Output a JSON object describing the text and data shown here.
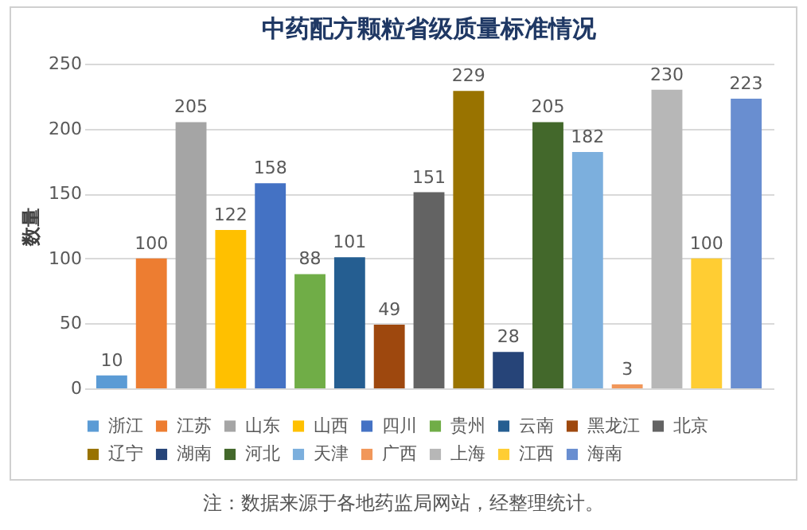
{
  "chart_data": {
    "type": "bar",
    "title": "中药配方颗粒省级质量标准情况",
    "ylabel": "数量",
    "categories": [
      null,
      null,
      null,
      null,
      null,
      null,
      null,
      null,
      null,
      null,
      null,
      null,
      null,
      null,
      null,
      null,
      null
    ],
    "series": [
      {
        "name": "浙江",
        "color": "#5b9bd5",
        "values": [
          10,
          null,
          null,
          null,
          null,
          null,
          null,
          null,
          null,
          null,
          null,
          null,
          null,
          null,
          null,
          null,
          null
        ]
      },
      {
        "name": "江苏",
        "color": "#ed7d31",
        "values": [
          null,
          100,
          null,
          null,
          null,
          null,
          null,
          null,
          null,
          null,
          null,
          null,
          null,
          null,
          null,
          null,
          null
        ]
      },
      {
        "name": "山东",
        "color": "#a5a5a5",
        "values": [
          null,
          null,
          205,
          null,
          null,
          null,
          null,
          null,
          null,
          null,
          null,
          null,
          null,
          null,
          null,
          null,
          null
        ]
      },
      {
        "name": "山西",
        "color": "#ffc000",
        "values": [
          null,
          null,
          null,
          122,
          null,
          null,
          null,
          null,
          null,
          null,
          null,
          null,
          null,
          null,
          null,
          null,
          null
        ]
      },
      {
        "name": "四川",
        "color": "#4472c4",
        "values": [
          null,
          null,
          null,
          null,
          158,
          null,
          null,
          null,
          null,
          null,
          null,
          null,
          null,
          null,
          null,
          null,
          null
        ]
      },
      {
        "name": "贵州",
        "color": "#70ad47",
        "values": [
          null,
          null,
          null,
          null,
          null,
          88,
          null,
          null,
          null,
          null,
          null,
          null,
          null,
          null,
          null,
          null,
          null
        ]
      },
      {
        "name": "云南",
        "color": "#255e91",
        "values": [
          null,
          null,
          null,
          null,
          null,
          null,
          101,
          null,
          null,
          null,
          null,
          null,
          null,
          null,
          null,
          null,
          null
        ]
      },
      {
        "name": "黑龙江",
        "color": "#9e480e",
        "values": [
          null,
          null,
          null,
          null,
          null,
          null,
          null,
          49,
          null,
          null,
          null,
          null,
          null,
          null,
          null,
          null,
          null
        ]
      },
      {
        "name": "北京",
        "color": "#636363",
        "values": [
          null,
          null,
          null,
          null,
          null,
          null,
          null,
          null,
          151,
          null,
          null,
          null,
          null,
          null,
          null,
          null,
          null
        ]
      },
      {
        "name": "辽宁",
        "color": "#997300",
        "values": [
          null,
          null,
          null,
          null,
          null,
          null,
          null,
          null,
          null,
          229,
          null,
          null,
          null,
          null,
          null,
          null,
          null
        ]
      },
      {
        "name": "湖南",
        "color": "#264478",
        "values": [
          null,
          null,
          null,
          null,
          null,
          null,
          null,
          null,
          null,
          null,
          28,
          null,
          null,
          null,
          null,
          null,
          null
        ]
      },
      {
        "name": "河北",
        "color": "#43682b",
        "values": [
          null,
          null,
          null,
          null,
          null,
          null,
          null,
          null,
          null,
          null,
          null,
          205,
          null,
          null,
          null,
          null,
          null
        ]
      },
      {
        "name": "天津",
        "color": "#7cafdd",
        "values": [
          null,
          null,
          null,
          null,
          null,
          null,
          null,
          null,
          null,
          null,
          null,
          null,
          182,
          null,
          null,
          null,
          null
        ]
      },
      {
        "name": "广西",
        "color": "#f1975a",
        "values": [
          null,
          null,
          null,
          null,
          null,
          null,
          null,
          null,
          null,
          null,
          null,
          null,
          null,
          3,
          null,
          null,
          null
        ]
      },
      {
        "name": "上海",
        "color": "#b7b7b7",
        "values": [
          null,
          null,
          null,
          null,
          null,
          null,
          null,
          null,
          null,
          null,
          null,
          null,
          null,
          null,
          230,
          null,
          null
        ]
      },
      {
        "name": "江西",
        "color": "#ffcd33",
        "values": [
          null,
          null,
          null,
          null,
          null,
          null,
          null,
          null,
          null,
          null,
          null,
          null,
          null,
          null,
          null,
          100,
          null
        ]
      },
      {
        "name": "海南",
        "color": "#698ed0",
        "values": [
          null,
          null,
          null,
          null,
          null,
          null,
          null,
          null,
          null,
          null,
          null,
          null,
          null,
          null,
          null,
          null,
          223
        ]
      }
    ],
    "ylim": [
      0,
      250
    ],
    "yticks": [
      0,
      50,
      100,
      150,
      200,
      250
    ],
    "grid": "y",
    "legend": "bottom",
    "tick_labels": "y",
    "data_labels": true,
    "annotations": [
      "注：数据来源于各地药监局网站，经整理统计。"
    ]
  }
}
